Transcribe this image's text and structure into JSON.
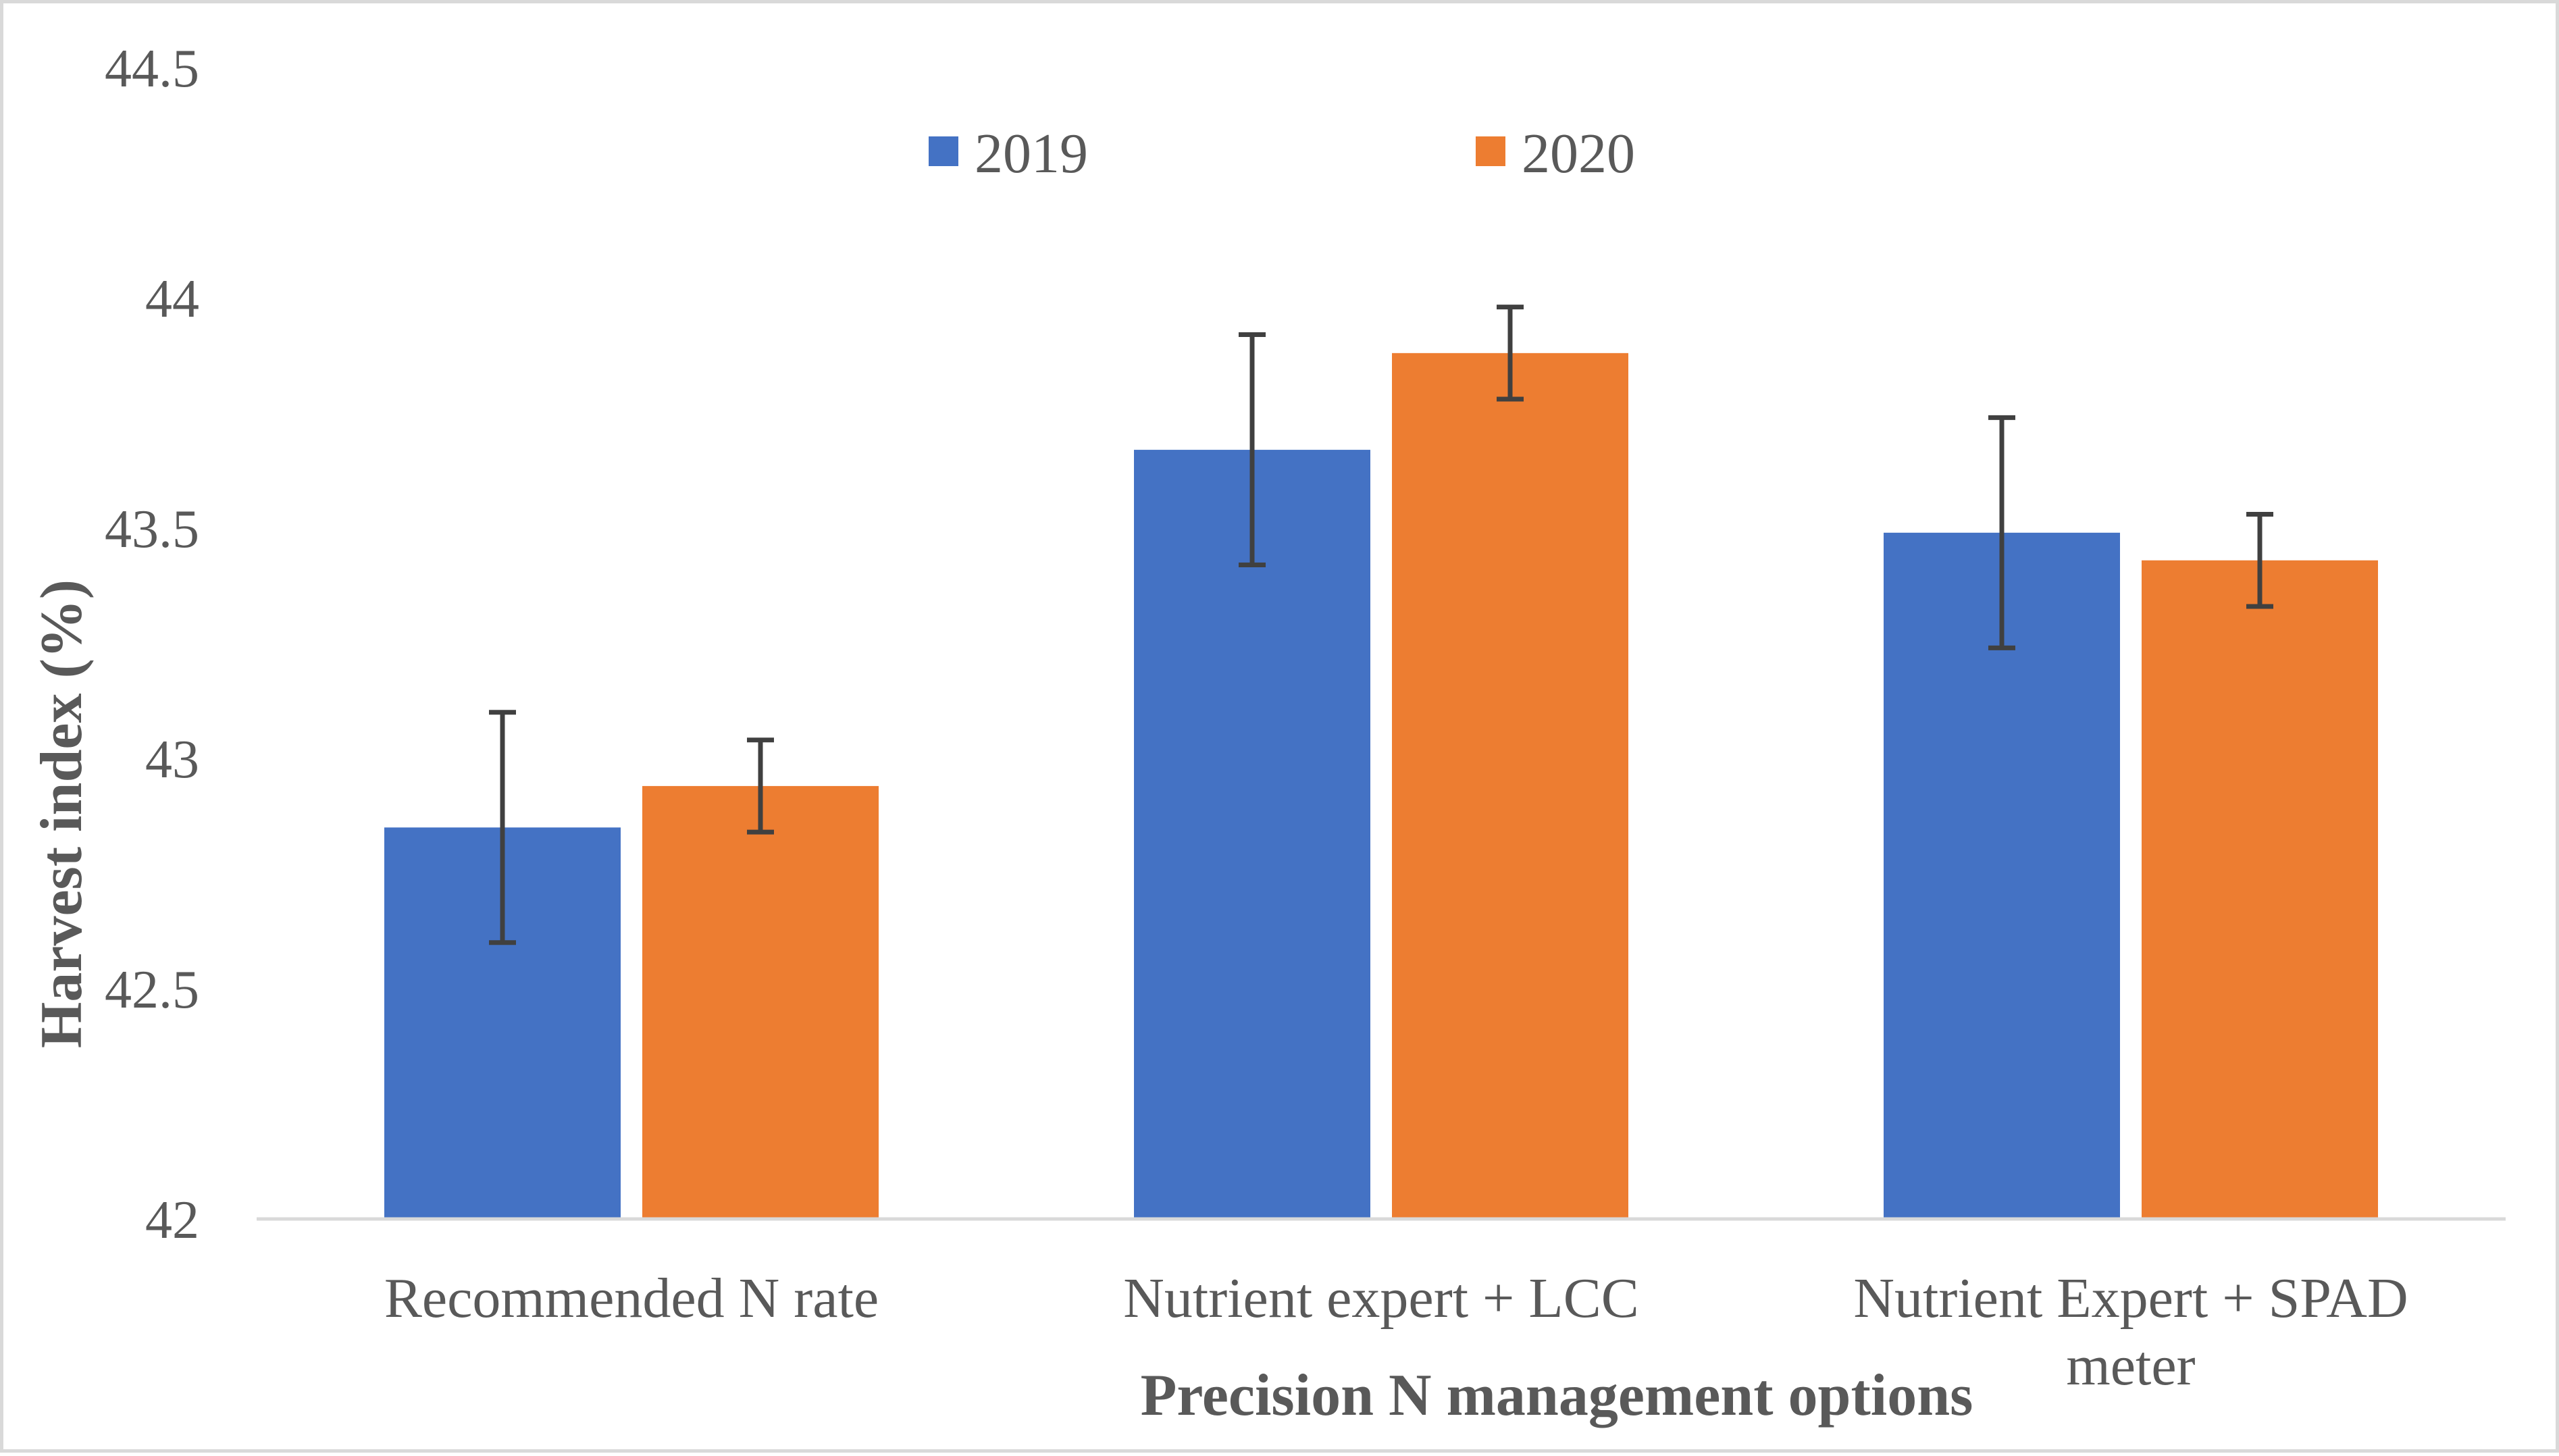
{
  "chart_data": {
    "type": "bar",
    "categories": [
      "Recommended N rate",
      "Nutrient expert + LCC",
      "Nutrient Expert + SPAD meter"
    ],
    "category_lines": [
      [
        "Recommended N rate"
      ],
      [
        "Nutrient expert + LCC"
      ],
      [
        "Nutrient Expert + SPAD",
        "meter"
      ]
    ],
    "series": [
      {
        "name": "2019",
        "color": "#4472c4",
        "values": [
          42.85,
          43.67,
          43.49
        ],
        "error": [
          0.25,
          0.25,
          0.25
        ]
      },
      {
        "name": "2020",
        "color": "#ed7d31",
        "values": [
          42.94,
          43.88,
          43.43
        ],
        "error": [
          0.1,
          0.1,
          0.1
        ]
      }
    ],
    "xlabel": "Precision N management options",
    "ylabel": "Harvest index (%)",
    "ylim": [
      42,
      44.5
    ],
    "yticks": [
      "42",
      "42.5",
      "43",
      "43.5",
      "44",
      "44.5"
    ],
    "grid": false,
    "legend_position": "top-center",
    "error_bar_color": "#404040",
    "axis_color": "#d9d9d9"
  }
}
